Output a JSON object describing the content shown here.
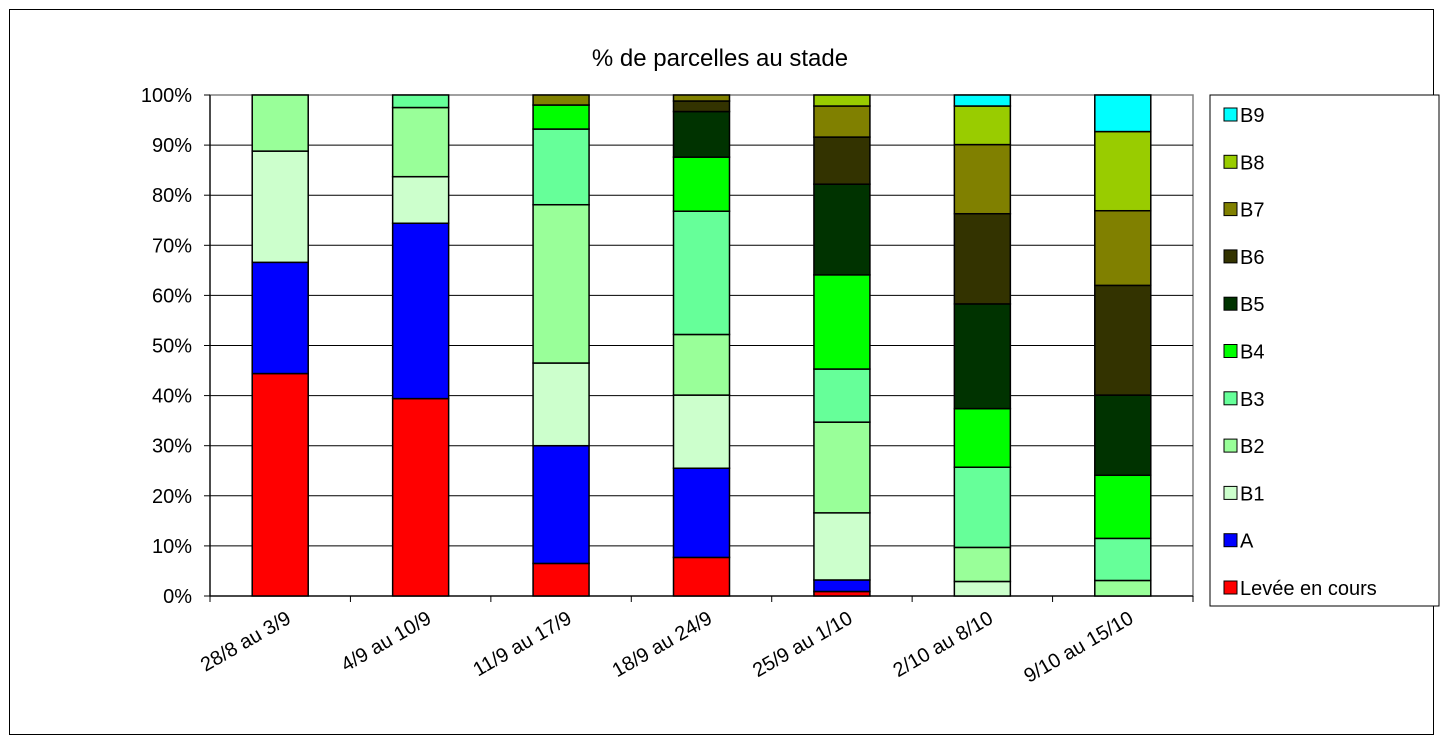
{
  "chart_data": {
    "type": "bar",
    "stacked": true,
    "percent": true,
    "title": "% de parcelles au stade",
    "xlabel": "",
    "ylabel": "",
    "ylim": [
      0,
      100
    ],
    "y_ticks": [
      "0%",
      "10%",
      "20%",
      "30%",
      "40%",
      "50%",
      "60%",
      "70%",
      "80%",
      "90%",
      "100%"
    ],
    "grid": "horizontal",
    "legend_position": "right",
    "categories": [
      "28/8 au 3/9",
      "4/9 au 10/9",
      "11/9 au 17/9",
      "18/9 au 24/9",
      "25/9 au 1/10",
      "2/10 au 8/10",
      "9/10 au 15/10"
    ],
    "series": [
      {
        "name": "Levée en cours",
        "color": "#ff0000",
        "values": [
          44.4,
          39.4,
          6.5,
          7.7,
          0.9,
          0,
          0
        ]
      },
      {
        "name": "A",
        "color": "#0000ff",
        "values": [
          22.2,
          35.0,
          23.5,
          17.8,
          2.3,
          0,
          0
        ]
      },
      {
        "name": "B1",
        "color": "#ccffcc",
        "values": [
          22.2,
          9.3,
          16.5,
          14.6,
          13.4,
          2.9,
          0
        ]
      },
      {
        "name": "B2",
        "color": "#99ff99",
        "values": [
          11.2,
          13.8,
          31.6,
          12.1,
          18.1,
          6.8,
          3.1
        ]
      },
      {
        "name": "B3",
        "color": "#66ff99",
        "values": [
          0,
          2.5,
          15.1,
          24.6,
          10.6,
          16.0,
          8.4
        ]
      },
      {
        "name": "B4",
        "color": "#00ff00",
        "values": [
          0,
          0,
          4.8,
          10.8,
          18.8,
          11.7,
          12.6
        ]
      },
      {
        "name": "B5",
        "color": "#003300",
        "values": [
          0,
          0,
          0,
          9.1,
          18.1,
          20.9,
          16.0
        ]
      },
      {
        "name": "B6",
        "color": "#333300",
        "values": [
          0,
          0,
          0,
          2.1,
          9.4,
          18.0,
          21.9
        ]
      },
      {
        "name": "B7",
        "color": "#808000",
        "values": [
          0,
          0,
          2.0,
          1.2,
          6.2,
          13.8,
          14.9
        ]
      },
      {
        "name": "B8",
        "color": "#99cc00",
        "values": [
          0,
          0,
          0,
          0,
          2.2,
          7.7,
          15.8
        ]
      },
      {
        "name": "B9",
        "color": "#00ffff",
        "values": [
          0,
          0,
          0,
          0,
          0,
          2.2,
          7.3
        ]
      }
    ]
  }
}
